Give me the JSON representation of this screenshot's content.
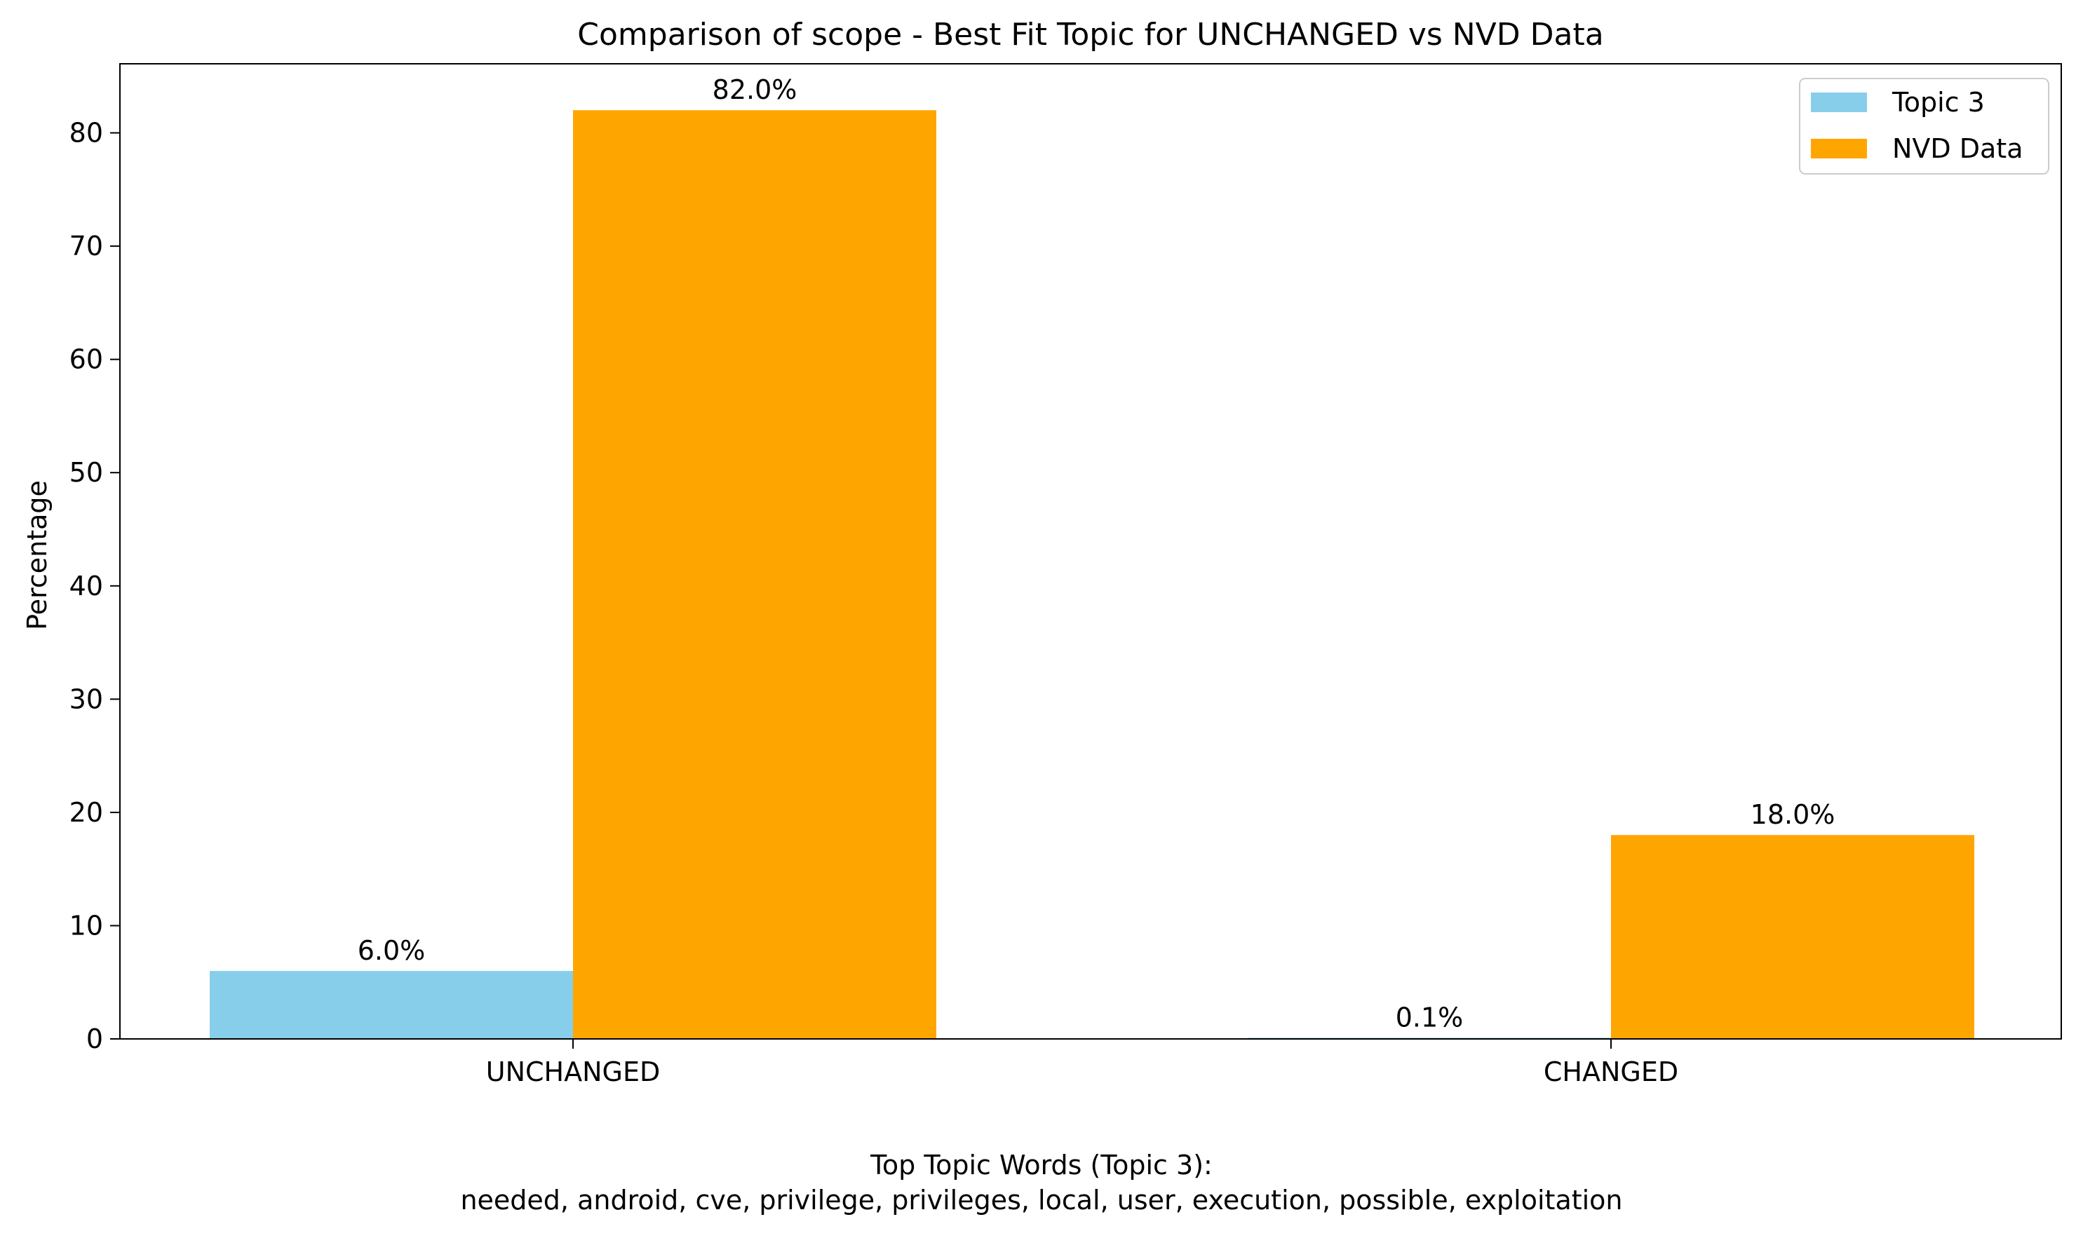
{
  "chart_data": {
    "type": "bar",
    "title": "Comparison of scope - Best Fit Topic for UNCHANGED vs NVD Data",
    "xlabel": "",
    "ylabel": "Percentage",
    "categories": [
      "UNCHANGED",
      "CHANGED"
    ],
    "series": [
      {
        "name": "Topic 3",
        "values": [
          6.0,
          0.1
        ],
        "labels": [
          "6.0%",
          "0.1%"
        ],
        "color": "#87CEEB"
      },
      {
        "name": "NVD Data",
        "values": [
          82.0,
          18.0
        ],
        "labels": [
          "82.0%",
          "18.0%"
        ],
        "color": "#FFA500"
      }
    ],
    "ylim": [
      0,
      86.1
    ],
    "yticks": [
      0,
      10,
      20,
      30,
      40,
      50,
      60,
      70,
      80
    ],
    "grid": false,
    "legend_position": "top-right"
  },
  "footer": {
    "heading": "Top Topic Words (Topic 3):",
    "words": "needed,  android,  cve,  privilege,  privileges,  local,  user,  execution,  possible,  exploitation"
  }
}
